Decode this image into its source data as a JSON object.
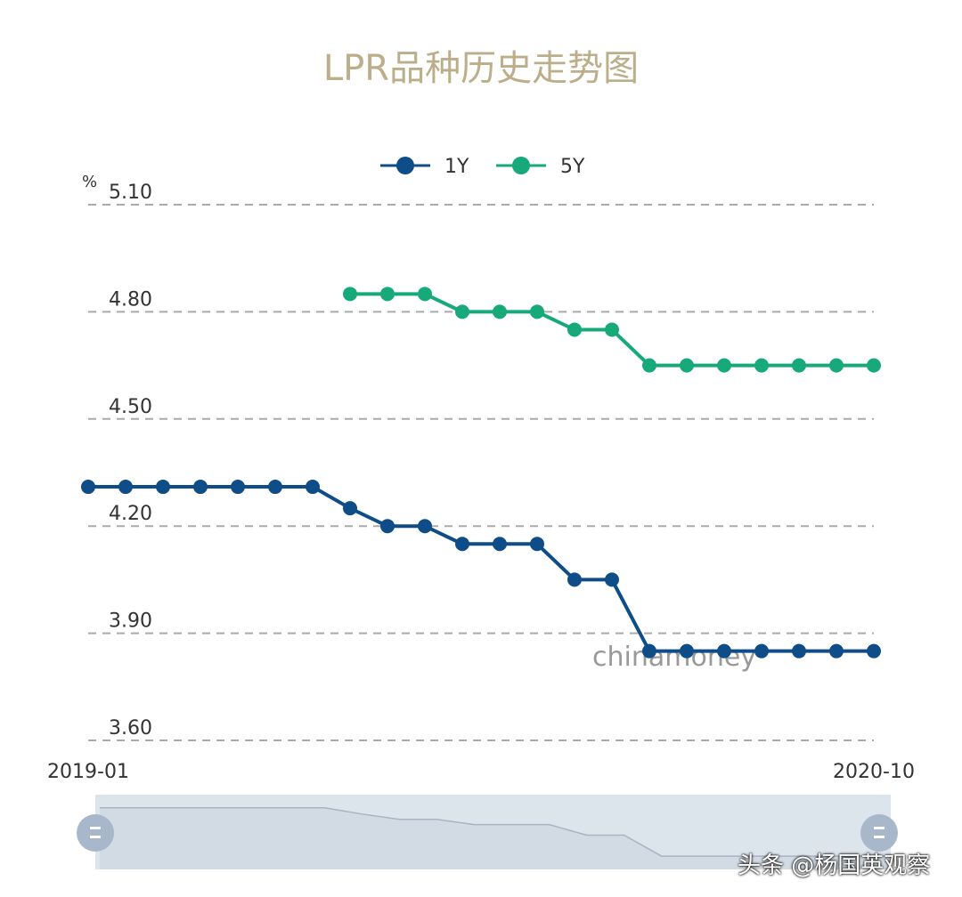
{
  "chart_data": {
    "type": "line",
    "title": "LPR品种历史走势图",
    "ylabel": "%",
    "ylim": [
      3.6,
      5.1
    ],
    "yticks": [
      "5.10",
      "4.80",
      "4.50",
      "4.20",
      "3.90",
      "3.60"
    ],
    "x": [
      "2019-01",
      "2019-02",
      "2019-03",
      "2019-04",
      "2019-05",
      "2019-06",
      "2019-07",
      "2019-08",
      "2019-09",
      "2019-10",
      "2019-11",
      "2019-12",
      "2020-01",
      "2020-02",
      "2020-03",
      "2020-04",
      "2020-05",
      "2020-06",
      "2020-07",
      "2020-08",
      "2020-09",
      "2020-10"
    ],
    "xtick_labels": [
      "2019-01",
      "2020-10"
    ],
    "grid": "horizontal dashed",
    "legend": "top-center",
    "series": [
      {
        "name": "1Y",
        "color": "#0e4d87",
        "values": [
          4.31,
          4.31,
          4.31,
          4.31,
          4.31,
          4.31,
          4.31,
          4.25,
          4.2,
          4.2,
          4.15,
          4.15,
          4.15,
          4.05,
          4.05,
          3.85,
          3.85,
          3.85,
          3.85,
          3.85,
          3.85,
          3.85
        ]
      },
      {
        "name": "5Y",
        "color": "#17a97a",
        "values": [
          null,
          null,
          null,
          null,
          null,
          null,
          null,
          4.85,
          4.85,
          4.85,
          4.8,
          4.8,
          4.8,
          4.75,
          4.75,
          4.65,
          4.65,
          4.65,
          4.65,
          4.65,
          4.65,
          4.65
        ]
      }
    ],
    "annotation": "chinamoney"
  },
  "watermark": "头条 @杨国英观察"
}
